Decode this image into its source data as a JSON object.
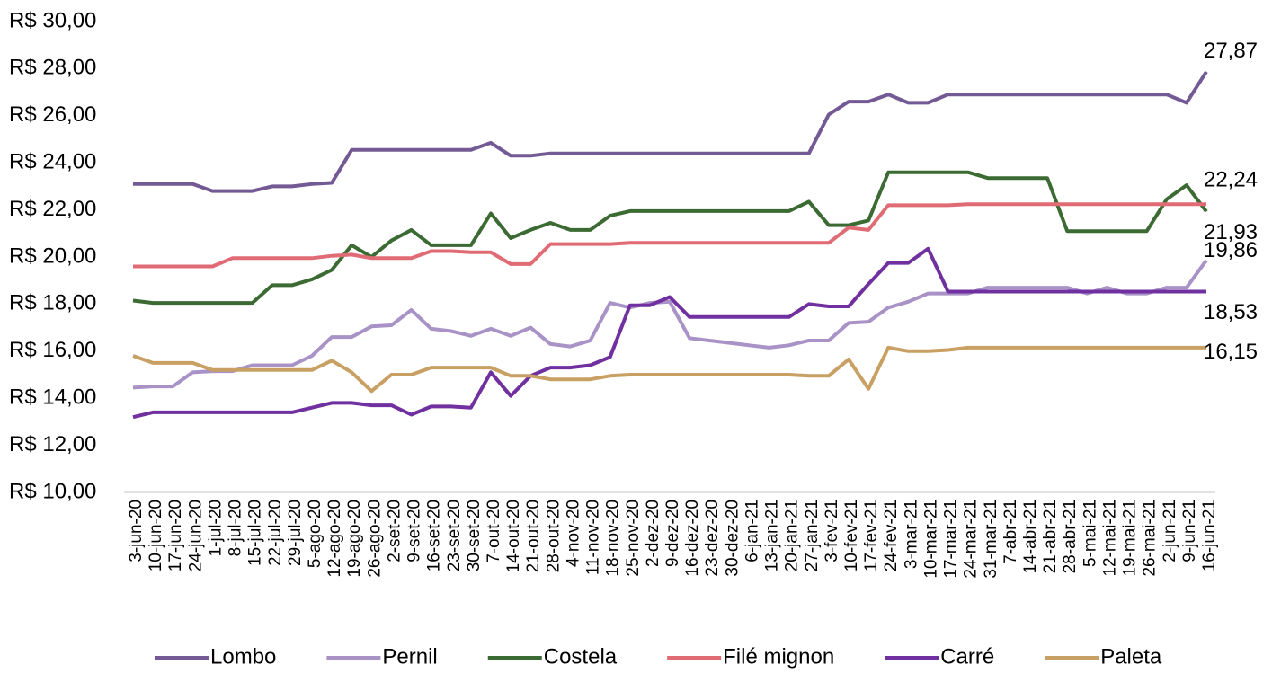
{
  "chart_data": {
    "type": "line",
    "categories": [
      "3-jun-20",
      "10-jun-20",
      "17-jun-20",
      "24-jun-20",
      "1-jul-20",
      "8-jul-20",
      "15-jul-20",
      "22-jul-20",
      "29-jul-20",
      "5-ago-20",
      "12-ago-20",
      "19-ago-20",
      "26-ago-20",
      "2-set-20",
      "9-set-20",
      "16-set-20",
      "23-set-20",
      "30-set-20",
      "7-out-20",
      "14-out-20",
      "21-out-20",
      "28-out-20",
      "4-nov-20",
      "11-nov-20",
      "18-nov-20",
      "25-nov-20",
      "2-dez-20",
      "9-dez-20",
      "16-dez-20",
      "23-dez-20",
      "30-dez-20",
      "6-jan-21",
      "13-jan-21",
      "20-jan-21",
      "27-jan-21",
      "3-fev-21",
      "10-fev-21",
      "17-fev-21",
      "24-fev-21",
      "3-mar-21",
      "10-mar-21",
      "17-mar-21",
      "24-mar-21",
      "31-mar-21",
      "7-abr-21",
      "14-abr-21",
      "21-abr-21",
      "28-abr-21",
      "5-mai-21",
      "12-mai-21",
      "19-mai-21",
      "26-mai-21",
      "2-jun-21",
      "9-jun-21",
      "16-jun-21"
    ],
    "series": [
      {
        "name": "Lombo",
        "color": "#745a94",
        "values": [
          23.1,
          23.1,
          23.1,
          23.1,
          22.8,
          22.8,
          22.8,
          23.0,
          23.0,
          23.1,
          23.15,
          24.55,
          24.55,
          24.55,
          24.55,
          24.55,
          24.55,
          24.55,
          24.85,
          24.3,
          24.3,
          24.4,
          24.4,
          24.4,
          24.4,
          24.4,
          24.4,
          24.4,
          24.4,
          24.4,
          24.4,
          24.4,
          24.4,
          24.4,
          24.4,
          26.05,
          26.6,
          26.6,
          26.9,
          26.55,
          26.55,
          26.9,
          26.9,
          26.9,
          26.9,
          26.9,
          26.9,
          26.9,
          26.9,
          26.9,
          26.9,
          26.9,
          26.9,
          26.55,
          27.87
        ],
        "value_labels": [
          null,
          null,
          null,
          null,
          null,
          null,
          null,
          null,
          null,
          null,
          null,
          null,
          null,
          null,
          null,
          null,
          null,
          null,
          null,
          null,
          null,
          null,
          null,
          null,
          null,
          null,
          null,
          null,
          null,
          null,
          null,
          null,
          null,
          null,
          null,
          null,
          null,
          null,
          null,
          null,
          null,
          null,
          null,
          null,
          null,
          null,
          null,
          null,
          null,
          null,
          null,
          null,
          null,
          null,
          "27,87"
        ]
      },
      {
        "name": "Pernil",
        "color": "#a892c6",
        "values": [
          14.45,
          14.5,
          14.5,
          15.1,
          15.15,
          15.15,
          15.4,
          15.4,
          15.4,
          15.8,
          16.6,
          16.6,
          17.05,
          17.1,
          17.75,
          16.95,
          16.85,
          16.65,
          16.95,
          16.65,
          17.0,
          16.3,
          16.2,
          16.45,
          18.05,
          17.85,
          18.05,
          18.1,
          16.55,
          16.45,
          16.35,
          16.25,
          16.15,
          16.25,
          16.45,
          16.45,
          17.2,
          17.25,
          17.85,
          18.1,
          18.45,
          18.45,
          18.45,
          18.7,
          18.7,
          18.7,
          18.7,
          18.7,
          18.45,
          18.7,
          18.45,
          18.45,
          18.7,
          18.7,
          19.86
        ],
        "value_labels": [
          null,
          null,
          null,
          null,
          null,
          null,
          null,
          null,
          null,
          null,
          null,
          null,
          null,
          null,
          null,
          null,
          null,
          null,
          null,
          null,
          null,
          null,
          null,
          null,
          null,
          null,
          null,
          null,
          null,
          null,
          null,
          null,
          null,
          null,
          null,
          null,
          null,
          null,
          null,
          null,
          null,
          null,
          null,
          null,
          null,
          null,
          null,
          null,
          null,
          null,
          null,
          null,
          null,
          null,
          "19,86"
        ]
      },
      {
        "name": "Costela",
        "color": "#3b6b33",
        "values": [
          18.15,
          18.05,
          18.05,
          18.05,
          18.05,
          18.05,
          18.05,
          18.8,
          18.8,
          19.05,
          19.45,
          20.5,
          20.0,
          20.7,
          21.15,
          20.5,
          20.5,
          20.5,
          21.85,
          20.8,
          21.15,
          21.45,
          21.15,
          21.15,
          21.75,
          21.95,
          21.95,
          21.95,
          21.95,
          21.95,
          21.95,
          21.95,
          21.95,
          21.95,
          22.35,
          21.35,
          21.35,
          21.55,
          23.6,
          23.6,
          23.6,
          23.6,
          23.6,
          23.35,
          23.35,
          23.35,
          23.35,
          21.1,
          21.1,
          21.1,
          21.1,
          21.1,
          22.45,
          23.05,
          21.93
        ],
        "value_labels": [
          null,
          null,
          null,
          null,
          null,
          null,
          null,
          null,
          null,
          null,
          null,
          null,
          null,
          null,
          null,
          null,
          null,
          null,
          null,
          null,
          null,
          null,
          null,
          null,
          null,
          null,
          null,
          null,
          null,
          null,
          null,
          null,
          null,
          null,
          null,
          null,
          null,
          null,
          null,
          null,
          null,
          null,
          null,
          null,
          null,
          null,
          null,
          null,
          null,
          null,
          null,
          null,
          null,
          null,
          "21,93"
        ]
      },
      {
        "name": "Filé mignon",
        "color": "#e06b74",
        "values": [
          19.6,
          19.6,
          19.6,
          19.6,
          19.6,
          19.95,
          19.95,
          19.95,
          19.95,
          19.95,
          20.05,
          20.1,
          19.95,
          19.95,
          19.95,
          20.25,
          20.25,
          20.2,
          20.2,
          19.7,
          19.7,
          20.55,
          20.55,
          20.55,
          20.55,
          20.6,
          20.6,
          20.6,
          20.6,
          20.6,
          20.6,
          20.6,
          20.6,
          20.6,
          20.6,
          20.6,
          21.25,
          21.15,
          22.2,
          22.2,
          22.2,
          22.2,
          22.24,
          22.24,
          22.24,
          22.24,
          22.24,
          22.24,
          22.24,
          22.24,
          22.24,
          22.24,
          22.24,
          22.24,
          22.24
        ],
        "value_labels": [
          null,
          null,
          null,
          null,
          null,
          null,
          null,
          null,
          null,
          null,
          null,
          null,
          null,
          null,
          null,
          null,
          null,
          null,
          null,
          null,
          null,
          null,
          null,
          null,
          null,
          null,
          null,
          null,
          null,
          null,
          null,
          null,
          null,
          null,
          null,
          null,
          null,
          null,
          null,
          null,
          null,
          null,
          null,
          null,
          null,
          null,
          null,
          null,
          null,
          null,
          null,
          null,
          null,
          null,
          "22,24"
        ]
      },
      {
        "name": "Carré",
        "color": "#7030a0",
        "values": [
          13.2,
          13.4,
          13.4,
          13.4,
          13.4,
          13.4,
          13.4,
          13.4,
          13.4,
          13.6,
          13.8,
          13.8,
          13.7,
          13.7,
          13.3,
          13.65,
          13.65,
          13.6,
          15.1,
          14.1,
          14.95,
          15.3,
          15.3,
          15.4,
          15.75,
          17.95,
          17.95,
          18.3,
          17.45,
          17.45,
          17.45,
          17.45,
          17.45,
          17.45,
          18.0,
          17.9,
          17.9,
          18.85,
          19.75,
          19.75,
          20.35,
          18.53,
          18.53,
          18.53,
          18.53,
          18.53,
          18.53,
          18.53,
          18.53,
          18.53,
          18.53,
          18.53,
          18.53,
          18.53,
          18.53
        ],
        "value_labels": [
          null,
          null,
          null,
          null,
          null,
          null,
          null,
          null,
          null,
          null,
          null,
          null,
          null,
          null,
          null,
          null,
          null,
          null,
          null,
          null,
          null,
          null,
          null,
          null,
          null,
          null,
          null,
          null,
          null,
          null,
          null,
          null,
          null,
          null,
          null,
          null,
          null,
          null,
          null,
          null,
          null,
          null,
          null,
          null,
          null,
          null,
          null,
          null,
          null,
          null,
          null,
          null,
          null,
          null,
          "18,53"
        ]
      },
      {
        "name": "Paleta",
        "color": "#c9a063",
        "values": [
          15.8,
          15.5,
          15.5,
          15.5,
          15.2,
          15.2,
          15.2,
          15.2,
          15.2,
          15.2,
          15.6,
          15.1,
          14.3,
          15.0,
          15.0,
          15.3,
          15.3,
          15.3,
          15.3,
          14.95,
          14.95,
          14.8,
          14.8,
          14.8,
          14.95,
          15.0,
          15.0,
          15.0,
          15.0,
          15.0,
          15.0,
          15.0,
          15.0,
          15.0,
          14.95,
          14.95,
          15.65,
          14.4,
          16.15,
          16.0,
          16.0,
          16.05,
          16.15,
          16.15,
          16.15,
          16.15,
          16.15,
          16.15,
          16.15,
          16.15,
          16.15,
          16.15,
          16.15,
          16.15,
          16.15
        ],
        "value_labels": [
          null,
          null,
          null,
          null,
          null,
          null,
          null,
          null,
          null,
          null,
          null,
          null,
          null,
          null,
          null,
          null,
          null,
          null,
          null,
          null,
          null,
          null,
          null,
          null,
          null,
          null,
          null,
          null,
          null,
          null,
          null,
          null,
          null,
          null,
          null,
          null,
          null,
          null,
          null,
          null,
          null,
          null,
          null,
          null,
          null,
          null,
          null,
          null,
          null,
          null,
          null,
          null,
          null,
          null,
          "16,15"
        ]
      }
    ],
    "ylim": [
      10,
      30
    ],
    "yticks": [
      {
        "value": 10,
        "label": "R$ 10,00"
      },
      {
        "value": 12,
        "label": "R$ 12,00"
      },
      {
        "value": 14,
        "label": "R$ 14,00"
      },
      {
        "value": 16,
        "label": "R$ 16,00"
      },
      {
        "value": 18,
        "label": "R$ 18,00"
      },
      {
        "value": 20,
        "label": "R$ 20,00"
      },
      {
        "value": 22,
        "label": "R$ 22,00"
      },
      {
        "value": 24,
        "label": "R$ 24,00"
      },
      {
        "value": 26,
        "label": "R$ 26,00"
      },
      {
        "value": 28,
        "label": "R$ 28,00"
      },
      {
        "value": 30,
        "label": "R$ 30,00"
      }
    ],
    "grid": false,
    "legend": "bottom"
  }
}
